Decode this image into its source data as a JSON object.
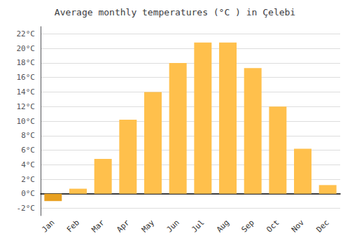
{
  "chart_data": {
    "type": "bar",
    "title": "Average monthly temperatures (°C ) in Çelebi",
    "categories": [
      "Jan",
      "Feb",
      "Mar",
      "Apr",
      "May",
      "Jun",
      "Jul",
      "Aug",
      "Sep",
      "Oct",
      "Nov",
      "Dec"
    ],
    "values": [
      -1.0,
      0.7,
      4.8,
      10.2,
      14.0,
      18.0,
      20.8,
      20.8,
      17.3,
      12.0,
      6.2,
      1.2
    ],
    "colors": [
      "#E8A020",
      "#FFC04C",
      "#FFC04C",
      "#FFC04C",
      "#FFC04C",
      "#FFC04C",
      "#FFC04C",
      "#FFC04C",
      "#FFC04C",
      "#FFC04C",
      "#FFC04C",
      "#FFC04C"
    ],
    "ylim": [
      -3,
      23
    ],
    "yticks": [
      {
        "value": -2,
        "label": "-2°C"
      },
      {
        "value": 0,
        "label": "0°C"
      },
      {
        "value": 2,
        "label": "2°C"
      },
      {
        "value": 4,
        "label": "4°C"
      },
      {
        "value": 6,
        "label": "6°C"
      },
      {
        "value": 8,
        "label": "8°C"
      },
      {
        "value": 10,
        "label": "10°C"
      },
      {
        "value": 12,
        "label": "12°C"
      },
      {
        "value": 14,
        "label": "14°C"
      },
      {
        "value": 16,
        "label": "16°C"
      },
      {
        "value": 18,
        "label": "18°C"
      },
      {
        "value": 20,
        "label": "20°C"
      },
      {
        "value": 22,
        "label": "22°C"
      }
    ],
    "grid": true
  }
}
